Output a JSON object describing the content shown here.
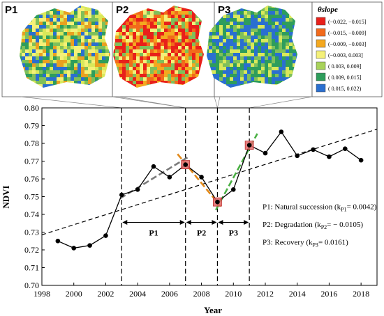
{
  "panels": [
    {
      "label": "P1",
      "palette": [
        "#7fc05a",
        "#d9e85a",
        "#f4f078",
        "#2e9d5c",
        "#2a6fd0",
        "#e8a020"
      ]
    },
    {
      "label": "P2",
      "palette": [
        "#e8201a",
        "#f26a1b",
        "#f4a81f",
        "#e8201a",
        "#f4f078",
        "#7fc05a"
      ]
    },
    {
      "label": "P3",
      "palette": [
        "#2a6fd0",
        "#2e9d5c",
        "#7fc05a",
        "#2a6fd0",
        "#d9e85a",
        "#2e9d5c"
      ]
    }
  ],
  "legend": {
    "title": "θslope",
    "items": [
      {
        "label": "(−0.022, −0.015]",
        "color": "#e8201a"
      },
      {
        "label": "(−0.015, −0.009]",
        "color": "#f26a1b"
      },
      {
        "label": "(−0.009, −0.003]",
        "color": "#f4a81f"
      },
      {
        "label": "(−0.003, 0.003]",
        "color": "#f4f078"
      },
      {
        "label": "( 0.003, 0.009]",
        "color": "#a8d25a"
      },
      {
        "label": "( 0.009, 0.015]",
        "color": "#2e9d5c"
      },
      {
        "label": "( 0.015, 0.022)",
        "color": "#2a6fd0"
      }
    ]
  },
  "chart_data": {
    "type": "line",
    "xlabel": "Year",
    "ylabel": "NDVI",
    "xlim": [
      1998,
      2019
    ],
    "ylim": [
      0.7,
      0.8
    ],
    "xticks": [
      1998,
      2000,
      2002,
      2004,
      2006,
      2008,
      2010,
      2012,
      2014,
      2016,
      2018
    ],
    "yticks": [
      0.7,
      0.71,
      0.72,
      0.73,
      0.74,
      0.75,
      0.76,
      0.77,
      0.78,
      0.79,
      0.8
    ],
    "series": [
      {
        "x": [
          1999,
          2000,
          2001,
          2002,
          2003,
          2004,
          2005,
          2006,
          2007,
          2008,
          2009,
          2010,
          2011,
          2012,
          2013,
          2014,
          2015,
          2016,
          2017,
          2018
        ],
        "y": [
          0.725,
          0.721,
          0.7225,
          0.728,
          0.751,
          0.754,
          0.767,
          0.761,
          0.768,
          0.761,
          0.747,
          0.754,
          0.779,
          0.7745,
          0.7865,
          0.773,
          0.7765,
          0.7725,
          0.777,
          0.7705
        ]
      }
    ],
    "overall_trend": {
      "x": [
        1998,
        2019
      ],
      "y": [
        0.7285,
        0.788
      ]
    },
    "segment_trends": [
      {
        "x": [
          2002.9,
          2007.2
        ],
        "y": [
          0.749,
          0.7725
        ],
        "color": "#7a7a7a"
      },
      {
        "x": [
          2006.5,
          2009.2
        ],
        "y": [
          0.774,
          0.7445
        ],
        "color": "#e38a1a"
      },
      {
        "x": [
          2008.9,
          2011.5
        ],
        "y": [
          0.7425,
          0.7855
        ],
        "color": "#4ab044"
      }
    ],
    "highlight_points": [
      {
        "x": 2007,
        "y": 0.768
      },
      {
        "x": 2009,
        "y": 0.747
      },
      {
        "x": 2011,
        "y": 0.779
      }
    ],
    "breakpoints": [
      2003,
      2007,
      2009,
      2011
    ],
    "segments": [
      {
        "label": "P1",
        "from": 2003,
        "to": 2007
      },
      {
        "label": "P2",
        "from": 2007,
        "to": 2009
      },
      {
        "label": "P3",
        "from": 2009,
        "to": 2011
      }
    ],
    "annotations": [
      {
        "prefix": "P1: Natural succession (k",
        "sub": "P1",
        "suffix": "= 0.0042)"
      },
      {
        "prefix": "P2: Degradation (k",
        "sub": "P2",
        "suffix": "= − 0.0105)"
      },
      {
        "prefix": "P3: Recovery (k",
        "sub": "P3",
        "suffix": "= 0.0161)"
      }
    ]
  }
}
